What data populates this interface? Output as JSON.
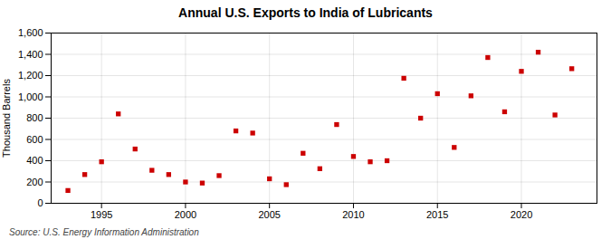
{
  "chart_data": {
    "type": "scatter",
    "title": "Annual U.S. Exports to India of Lubricants",
    "ylabel": "Thousand Barrels",
    "x": [
      1993,
      1994,
      1995,
      1996,
      1997,
      1998,
      1999,
      2000,
      2001,
      2002,
      2003,
      2004,
      2005,
      2006,
      2007,
      2008,
      2009,
      2010,
      2011,
      2012,
      2013,
      2014,
      2015,
      2016,
      2017,
      2018,
      2019,
      2020,
      2021,
      2022,
      2023
    ],
    "values": [
      120,
      270,
      390,
      840,
      510,
      310,
      270,
      200,
      190,
      260,
      680,
      660,
      230,
      175,
      470,
      325,
      740,
      440,
      390,
      400,
      1175,
      800,
      1030,
      525,
      1010,
      1370,
      860,
      1240,
      1420,
      830,
      1265
    ],
    "color": "#cc0000",
    "marker": "square",
    "xlim": [
      1992.0,
      2024.5
    ],
    "xticks": [
      1995,
      2000,
      2005,
      2010,
      2015,
      2020
    ],
    "ylim": [
      0,
      1600
    ],
    "yticks": [
      0,
      200,
      400,
      600,
      800,
      {
        "value": 1000,
        "label": "1,000"
      },
      {
        "value": 1200,
        "label": "1,200"
      },
      {
        "value": 1400,
        "label": "1,400"
      },
      {
        "value": 1600,
        "label": "1,600"
      }
    ],
    "grid": true,
    "annotations": [
      "Source: U.S. Energy Information Administration"
    ]
  }
}
